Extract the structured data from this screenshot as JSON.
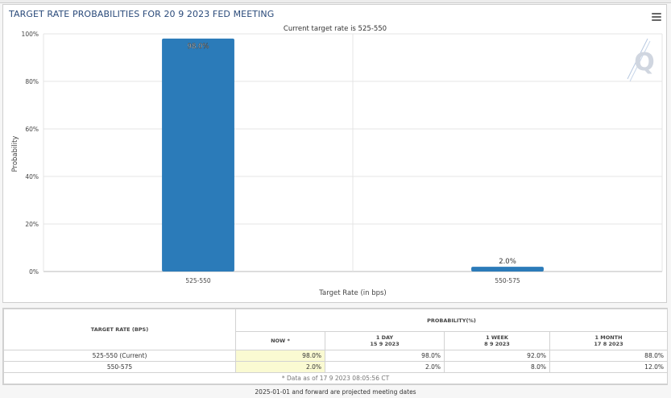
{
  "chart": {
    "title": "TARGET RATE PROBABILITIES FOR 20 9 2023 FED MEETING",
    "subtitle": "Current target rate is 525-550",
    "watermark": "Q"
  },
  "chart_data": {
    "type": "bar",
    "title": "TARGET RATE PROBABILITIES FOR 20 9 2023 FED MEETING",
    "subtitle": "Current target rate is 525-550",
    "categories": [
      "525-550",
      "550-575"
    ],
    "values": [
      98.0,
      2.0
    ],
    "value_labels": [
      "98.0%",
      "2.0%"
    ],
    "xlabel": "Target Rate (in bps)",
    "ylabel": "Probability",
    "ylim": [
      0,
      100
    ],
    "yticks": [
      "0%",
      "20%",
      "40%",
      "60%",
      "80%",
      "100%"
    ],
    "grid": true,
    "color": "#2b7bb9"
  },
  "table": {
    "header_rate": "TARGET RATE (BPS)",
    "header_prob": "PROBABILITY(%)",
    "columns": [
      {
        "line1": "NOW *",
        "line2": ""
      },
      {
        "line1": "1 DAY",
        "line2": "15 9 2023"
      },
      {
        "line1": "1 WEEK",
        "line2": "8 9 2023"
      },
      {
        "line1": "1 MONTH",
        "line2": "17 8 2023"
      }
    ],
    "rows": [
      {
        "rate": "525-550 (Current)",
        "now": "98.0%",
        "day": "98.0%",
        "week": "92.0%",
        "month": "88.0%"
      },
      {
        "rate": "550-575",
        "now": "2.0%",
        "day": "2.0%",
        "week": "8.0%",
        "month": "12.0%"
      }
    ],
    "footnote": "* Data as of 17 9 2023 08:05:56 CT"
  },
  "bottom_note": "2025-01-01 and forward are projected meeting dates",
  "colors": {
    "bar": "#2b7bb9",
    "title": "#2a4a7a",
    "now_highlight": "#fafad2"
  }
}
